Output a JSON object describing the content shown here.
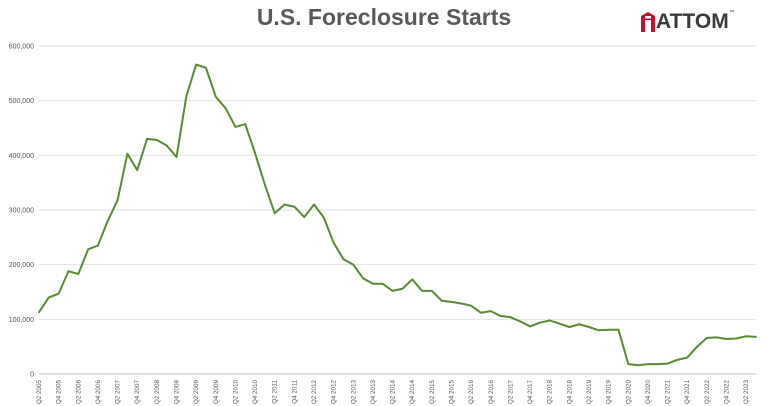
{
  "title": "U.S. Foreclosure Starts",
  "logo": {
    "text": "ATTOM",
    "tm": "™",
    "brand_color": "#c8102e"
  },
  "colors": {
    "line": "#5a8a32",
    "grid": "#e2e2e2",
    "axis": "#bfbfbf"
  },
  "chart_data": {
    "type": "line",
    "title": "U.S. Foreclosure Starts",
    "xlabel": "",
    "ylabel": "",
    "ylim": [
      0,
      600000
    ],
    "yticks": [
      0,
      100000,
      200000,
      300000,
      400000,
      500000,
      600000
    ],
    "ytick_labels": [
      "0",
      "100,000",
      "200,000",
      "300,000",
      "400,000",
      "500,000",
      "600,000"
    ],
    "grid": true,
    "categories": [
      "Q2 2005",
      "Q3 2005",
      "Q4 2005",
      "Q1 2006",
      "Q2 2006",
      "Q3 2006",
      "Q4 2006",
      "Q1 2007",
      "Q2 2007",
      "Q3 2007",
      "Q4 2007",
      "Q1 2008",
      "Q2 2008",
      "Q3 2008",
      "Q4 2008",
      "Q1 2009",
      "Q2 2009",
      "Q3 2009",
      "Q4 2009",
      "Q1 2010",
      "Q2 2010",
      "Q3 2010",
      "Q4 2010",
      "Q1 2011",
      "Q2 2011",
      "Q3 2011",
      "Q4 2011",
      "Q1 2012",
      "Q2 2012",
      "Q3 2012",
      "Q4 2012",
      "Q1 2013",
      "Q2 2013",
      "Q3 2013",
      "Q4 2013",
      "Q1 2014",
      "Q2 2014",
      "Q3 2014",
      "Q4 2014",
      "Q1 2015",
      "Q2 2015",
      "Q3 2015",
      "Q4 2015",
      "Q1 2016",
      "Q2 2016",
      "Q3 2016",
      "Q4 2016",
      "Q1 2017",
      "Q2 2017",
      "Q3 2017",
      "Q4 2017",
      "Q1 2018",
      "Q2 2018",
      "Q3 2018",
      "Q4 2018",
      "Q1 2019",
      "Q2 2019",
      "Q3 2019",
      "Q4 2019",
      "Q1 2020",
      "Q2 2020",
      "Q3 2020",
      "Q4 2020",
      "Q1 2021",
      "Q2 2021",
      "Q3 2021",
      "Q4 2021",
      "Q1 2022",
      "Q2 2022",
      "Q3 2022",
      "Q4 2022",
      "Q1 2023",
      "Q2 2023",
      "Q3 2023"
    ],
    "xtick_labels": [
      "Q2 2005",
      "Q4 2005",
      "Q2 2006",
      "Q4 2006",
      "Q2 2007",
      "Q4 2007",
      "Q2 2008",
      "Q4 2008",
      "Q2 2009",
      "Q4 2009",
      "Q2 2010",
      "Q4 2010",
      "Q2 2011",
      "Q4 2011",
      "Q2 2012",
      "Q4 2012",
      "Q2 2013",
      "Q4 2013",
      "Q2 2014",
      "Q4 2014",
      "Q2 2015",
      "Q4 2015",
      "Q2 2016",
      "Q4 2016",
      "Q2 2017",
      "Q4 2017",
      "Q2 2018",
      "Q4 2018",
      "Q2 2019",
      "Q4 2019",
      "Q2 2020",
      "Q4 2020",
      "Q2 2021",
      "Q4 2021",
      "Q2 2022",
      "Q4 2022",
      "Q2 2023"
    ],
    "series": [
      {
        "values": [
          113000,
          140000,
          147000,
          188000,
          183000,
          228000,
          235000,
          280000,
          318000,
          403000,
          373000,
          430000,
          428000,
          418000,
          397000,
          508000,
          566000,
          560000,
          507000,
          486000,
          452000,
          457000,
          404000,
          346000,
          294000,
          310000,
          306000,
          287000,
          310000,
          286000,
          240000,
          210000,
          200000,
          175000,
          165000,
          165000,
          152000,
          156000,
          173000,
          152000,
          152000,
          134000,
          132000,
          129000,
          125000,
          112000,
          115000,
          106000,
          104000,
          96000,
          87000,
          94000,
          98000,
          92000,
          86000,
          91000,
          86000,
          80000,
          81000,
          81000,
          18000,
          16000,
          18000,
          18000,
          19000,
          26000,
          30000,
          50000,
          66000,
          67000,
          64000,
          65000,
          69000,
          68000
        ]
      }
    ]
  }
}
